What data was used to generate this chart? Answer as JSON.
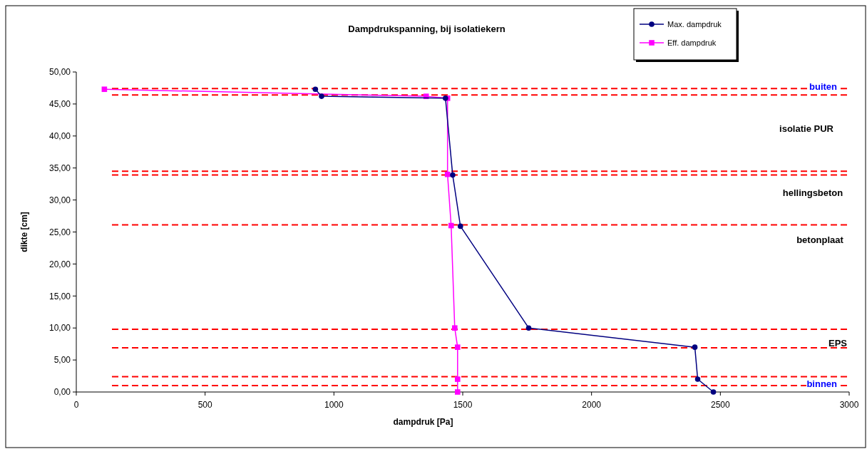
{
  "chart_data": {
    "type": "line",
    "title": "Dampdrukspanning, bij isolatiekern",
    "xlabel": "dampdruk [Pa]",
    "ylabel": "dikte [cm]",
    "xlim": [
      0,
      3000
    ],
    "xticks": [
      0,
      500,
      1000,
      1500,
      2000,
      2500,
      3000
    ],
    "ylim": [
      0,
      50
    ],
    "yticks": [
      {
        "value": 0,
        "label": "0,00"
      },
      {
        "value": 5,
        "label": "5,00"
      },
      {
        "value": 10,
        "label": "10,00"
      },
      {
        "value": 15,
        "label": "15,00"
      },
      {
        "value": 20,
        "label": "20,00"
      },
      {
        "value": 25,
        "label": "25,00"
      },
      {
        "value": 30,
        "label": "30,00"
      },
      {
        "value": 35,
        "label": "35,00"
      },
      {
        "value": 40,
        "label": "40,00"
      },
      {
        "value": 45,
        "label": "45,00"
      },
      {
        "value": 50,
        "label": "50,00"
      }
    ],
    "grid": false,
    "legend": "top right",
    "series": [
      {
        "name": "Max. dampdruk",
        "color": "#000080",
        "marker": "circle",
        "x": [
          928,
          952,
          1433,
          1461,
          1491,
          1756,
          2401,
          2412,
          2473
        ],
        "values": [
          47.3,
          46.2,
          45.9,
          33.9,
          25.9,
          10.0,
          7.0,
          2.0,
          0.0
        ]
      },
      {
        "name": "Eff. dampdruk",
        "color": "#ff00ff",
        "marker": "square",
        "x": [
          109,
          1358,
          1441,
          1441,
          1455,
          1469,
          1480,
          1480,
          1480
        ],
        "values": [
          47.3,
          46.2,
          45.9,
          34.0,
          26.0,
          10.0,
          7.0,
          2.0,
          0.0
        ]
      }
    ],
    "ref_lines": [
      {
        "axis": "y",
        "value": 47.4,
        "label": "buiten",
        "color": "#ff0000",
        "line_style": "dashed"
      },
      {
        "axis": "y",
        "value": 46.4,
        "color": "#ff0000",
        "line_style": "dashed"
      },
      {
        "axis": "y",
        "value": 34.5,
        "color": "#ff0000",
        "line_style": "dashed"
      },
      {
        "axis": "y",
        "value": 33.9,
        "color": "#ff0000",
        "line_style": "dashed"
      },
      {
        "axis": "y",
        "value": 26.1,
        "color": "#ff0000",
        "line_style": "dashed"
      },
      {
        "axis": "y",
        "value": 9.8,
        "color": "#ff0000",
        "line_style": "dashed"
      },
      {
        "axis": "y",
        "value": 6.9,
        "color": "#ff0000",
        "line_style": "dashed"
      },
      {
        "axis": "y",
        "value": 2.4,
        "color": "#ff0000",
        "line_style": "dashed"
      },
      {
        "axis": "y",
        "value": 1.0,
        "label": "binnen",
        "color": "#ff0000",
        "line_style": "dashed"
      }
    ],
    "annotations": [
      "isolatie PUR",
      "hellingsbeton",
      "betonplaat",
      "EPS"
    ]
  }
}
